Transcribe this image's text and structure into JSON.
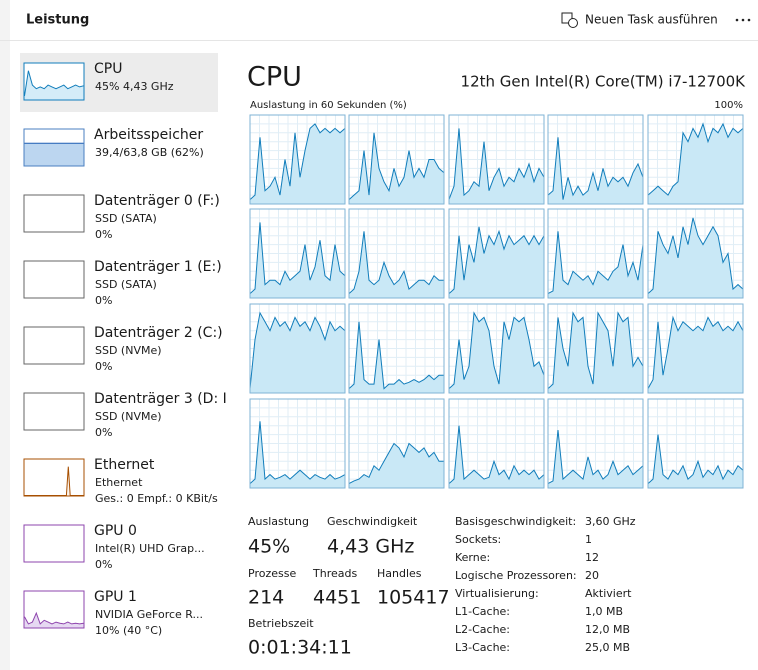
{
  "header": {
    "title": "Leistung",
    "action": "Neuen Task ausführen"
  },
  "sidebar": {
    "items": [
      {
        "name": "CPU",
        "line1": "45% 4,43 GHz",
        "graph": [
          10,
          80,
          40,
          30,
          35,
          30,
          40,
          35,
          30,
          35,
          40,
          30,
          35,
          40,
          35,
          38
        ]
      },
      {
        "name": "Arbeitsspeicher",
        "line1": "39,4/63,8 GB (62%)",
        "graph": [
          62,
          62,
          62,
          62,
          62,
          62,
          62,
          62,
          62,
          62,
          62,
          62,
          62,
          62,
          62,
          62
        ]
      },
      {
        "name": "Datenträger 0 (F:)",
        "line1": "SSD (SATA)",
        "line2": "0%"
      },
      {
        "name": "Datenträger 1 (E:)",
        "line1": "SSD (SATA)",
        "line2": "0%"
      },
      {
        "name": "Datenträger 2 (C:)",
        "line1": "SSD (NVMe)",
        "line2": "0%"
      },
      {
        "name": "Datenträger 3 (D: I",
        "line1": "SSD (NVMe)",
        "line2": "0%"
      },
      {
        "name": "Ethernet",
        "line1": "Ethernet",
        "line2": "Ges.: 0 Empf.: 0 KBit/s",
        "graph": [
          0,
          0,
          0,
          0,
          0,
          0,
          0,
          0,
          0,
          0,
          0,
          0,
          0,
          0,
          0,
          0,
          0,
          0,
          0,
          0,
          0,
          0,
          0,
          80,
          0,
          0,
          0,
          0,
          0,
          0,
          0,
          0
        ]
      },
      {
        "name": "GPU 0",
        "line1": "Intel(R) UHD Grap...",
        "line2": "0%"
      },
      {
        "name": "GPU 1",
        "line1": "NVIDIA GeForce R...",
        "line2": "10% (40 °C)",
        "graph": [
          30,
          10,
          15,
          40,
          10,
          20,
          15,
          10,
          15,
          12,
          10,
          15,
          10,
          12,
          10,
          12
        ]
      }
    ]
  },
  "cpu_panel": {
    "title": "CPU",
    "model": "12th Gen Intel(R) Core(TM) i7-12700K",
    "graph_label": "Auslastung in 60 Sekunden (%)",
    "graph_max": "100%",
    "core_graphs": [
      [
        5,
        10,
        75,
        15,
        20,
        30,
        10,
        50,
        20,
        80,
        30,
        60,
        85,
        90,
        80,
        85,
        80,
        85,
        80,
        85
      ],
      [
        5,
        10,
        15,
        60,
        10,
        80,
        40,
        25,
        15,
        40,
        20,
        30,
        60,
        30,
        40,
        30,
        50,
        50,
        40,
        35
      ],
      [
        5,
        20,
        85,
        10,
        15,
        25,
        20,
        70,
        15,
        30,
        40,
        20,
        30,
        25,
        40,
        30,
        45,
        25,
        40,
        30
      ],
      [
        10,
        15,
        75,
        5,
        30,
        10,
        20,
        10,
        15,
        35,
        15,
        40,
        20,
        30,
        25,
        30,
        20,
        35,
        45,
        30
      ],
      [
        10,
        15,
        20,
        15,
        10,
        20,
        25,
        80,
        70,
        85,
        75,
        90,
        70,
        85,
        80,
        90,
        75,
        85,
        80,
        85
      ],
      [
        5,
        10,
        85,
        15,
        20,
        20,
        15,
        30,
        20,
        25,
        30,
        60,
        20,
        35,
        65,
        25,
        20,
        60,
        30,
        25
      ],
      [
        5,
        10,
        30,
        75,
        20,
        15,
        20,
        40,
        25,
        15,
        20,
        30,
        10,
        15,
        20,
        20,
        15,
        25,
        20,
        20
      ],
      [
        5,
        10,
        70,
        20,
        60,
        40,
        80,
        50,
        70,
        60,
        75,
        55,
        70,
        60,
        65,
        70,
        60,
        70,
        60,
        70
      ],
      [
        5,
        8,
        75,
        20,
        15,
        30,
        25,
        20,
        25,
        15,
        30,
        25,
        20,
        30,
        35,
        60,
        25,
        40,
        20,
        60
      ],
      [
        5,
        10,
        75,
        60,
        50,
        70,
        45,
        80,
        60,
        90,
        70,
        60,
        70,
        80,
        70,
        40,
        50,
        10,
        15,
        10
      ],
      [
        5,
        60,
        90,
        80,
        70,
        85,
        75,
        80,
        70,
        85,
        75,
        80,
        70,
        85,
        75,
        60,
        80,
        70,
        75,
        70
      ],
      [
        5,
        10,
        80,
        15,
        10,
        10,
        60,
        5,
        10,
        10,
        15,
        10,
        12,
        15,
        12,
        15,
        20,
        15,
        20,
        20
      ],
      [
        5,
        10,
        60,
        15,
        30,
        90,
        80,
        85,
        70,
        30,
        10,
        80,
        60,
        85,
        80,
        85,
        60,
        30,
        35,
        20
      ],
      [
        5,
        10,
        85,
        50,
        30,
        90,
        80,
        85,
        30,
        10,
        90,
        80,
        70,
        30,
        90,
        80,
        85,
        30,
        40,
        30
      ],
      [
        5,
        15,
        80,
        20,
        50,
        85,
        70,
        80,
        75,
        70,
        75,
        70,
        85,
        75,
        80,
        70,
        75,
        70,
        80,
        70
      ],
      [
        5,
        10,
        75,
        10,
        15,
        10,
        12,
        15,
        10,
        15,
        20,
        15,
        10,
        15,
        12,
        10,
        15,
        10,
        12,
        15
      ],
      [
        5,
        8,
        10,
        15,
        12,
        25,
        20,
        30,
        40,
        50,
        45,
        35,
        50,
        45,
        40,
        45,
        35,
        40,
        30,
        30
      ],
      [
        5,
        10,
        70,
        10,
        15,
        20,
        15,
        10,
        12,
        30,
        15,
        20,
        10,
        25,
        15,
        20,
        15,
        20,
        10,
        15
      ],
      [
        5,
        8,
        65,
        10,
        15,
        20,
        15,
        10,
        35,
        15,
        20,
        10,
        15,
        30,
        15,
        20,
        25,
        15,
        20,
        25
      ],
      [
        5,
        10,
        60,
        15,
        10,
        20,
        15,
        25,
        10,
        15,
        30,
        12,
        20,
        15,
        25,
        10,
        20,
        15,
        25,
        20
      ]
    ],
    "stats": [
      {
        "label": "Auslastung",
        "value": "45%"
      },
      {
        "label": "Geschwindigkeit",
        "value": "4,43 GHz"
      },
      {
        "label": "Prozesse",
        "value": "214"
      },
      {
        "label": "Threads",
        "value": "4451"
      },
      {
        "label": "Handles",
        "value": "105417"
      },
      {
        "label": "Betriebszeit",
        "value": "0:01:34:11"
      }
    ],
    "details": [
      [
        "Basisgeschwindigkeit:",
        "3,60 GHz"
      ],
      [
        "Sockets:",
        "1"
      ],
      [
        "Kerne:",
        "12"
      ],
      [
        "Logische Prozessoren:",
        "20"
      ],
      [
        "Virtualisierung:",
        "Aktiviert"
      ],
      [
        "L1-Cache:",
        "1,0 MB"
      ],
      [
        "L2-Cache:",
        "12,0 MB"
      ],
      [
        "L3-Cache:",
        "25,0 MB"
      ]
    ]
  }
}
